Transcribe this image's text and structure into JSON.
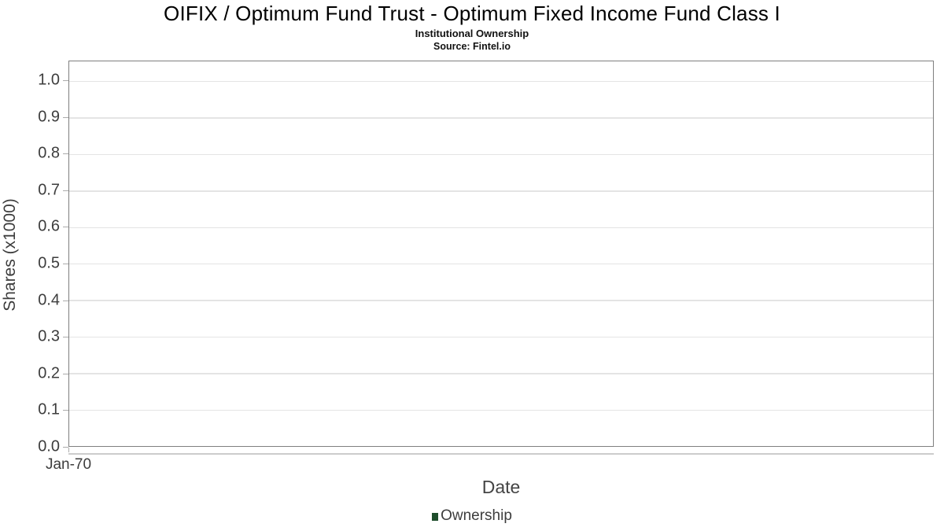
{
  "header": {
    "title": "OIFIX / Optimum Fund Trust - Optimum Fixed Income Fund Class I",
    "subtitle": "Institutional Ownership",
    "source": "Source: Fintel.io"
  },
  "chart_data": {
    "type": "line",
    "title": "OIFIX / Optimum Fund Trust - Optimum Fixed Income Fund Class I",
    "subtitle": "Institutional Ownership",
    "source": "Source: Fintel.io",
    "xlabel": "Date",
    "ylabel": "Shares (x1000)",
    "xtick_labels": [
      "Jan-70"
    ],
    "ytick_labels": [
      "0.0",
      "0.1",
      "0.2",
      "0.3",
      "0.4",
      "0.5",
      "0.6",
      "0.7",
      "0.8",
      "0.9",
      "1.0"
    ],
    "ytick_values": [
      0.0,
      0.1,
      0.2,
      0.3,
      0.4,
      0.5,
      0.6,
      0.7,
      0.8,
      0.9,
      1.0
    ],
    "ylim": [
      0,
      1.0536
    ],
    "grid": true,
    "legend_position": "bottom",
    "legend": [
      {
        "label": "Ownership",
        "color": "#1e4d2b"
      }
    ],
    "series": [
      {
        "name": "Ownership",
        "x": [],
        "y": []
      }
    ]
  }
}
